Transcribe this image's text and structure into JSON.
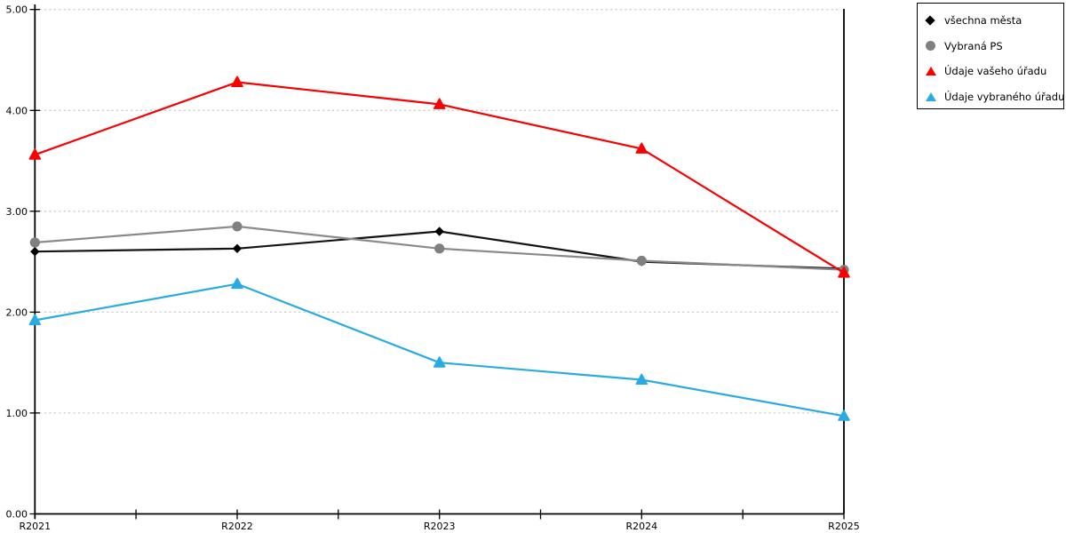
{
  "chart_data": {
    "type": "line",
    "categories": [
      "R2021",
      "R2022",
      "R2023",
      "R2024",
      "R2025"
    ],
    "series": [
      {
        "name": "všechna města",
        "marker": "diamond",
        "color": "#141414",
        "marker_color": "#000000",
        "values": [
          2.6,
          2.63,
          2.8,
          2.5,
          2.43
        ]
      },
      {
        "name": "Vybraná PS",
        "marker": "circle",
        "color": "#8A8A8A",
        "marker_color": "#808080",
        "values": [
          2.69,
          2.85,
          2.63,
          2.51,
          2.42
        ]
      },
      {
        "name": "Údaje vašeho úřadu",
        "marker": "triangle",
        "color": "#F70000",
        "marker_color": "#FA0000",
        "values": [
          3.56,
          4.28,
          4.06,
          3.62,
          2.39
        ]
      },
      {
        "name": "Údaje vybraného úřadu",
        "marker": "triangle",
        "color": "#29ABE2",
        "marker_color": "#29ABE2",
        "values": [
          1.92,
          2.28,
          1.5,
          1.33,
          0.97
        ]
      }
    ],
    "y_ticks": [
      "0.00",
      "1.00",
      "2.00",
      "3.00",
      "4.00",
      "5.00"
    ],
    "ylim": [
      0,
      5
    ],
    "grid": "horizontal-dotted",
    "legend_position": "top-right",
    "xlabel": "",
    "ylabel": ""
  },
  "colors": {
    "grid": "#C8C8C8",
    "axis": "#000000",
    "background": "#FFFFFF",
    "legend_border": "#000000"
  }
}
